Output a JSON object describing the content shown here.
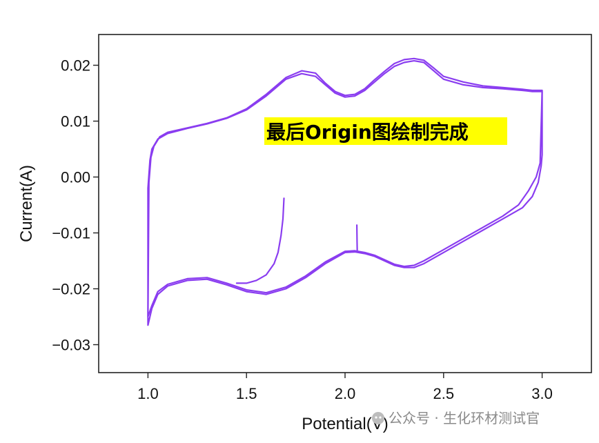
{
  "chart_data": {
    "type": "line",
    "title": "",
    "xlabel": "Potential(V)",
    "ylabel": "Current(A)",
    "xlim": [
      0.75,
      3.25
    ],
    "ylim": [
      -0.035,
      0.0255
    ],
    "xticks": [
      1.0,
      1.5,
      2.0,
      2.5,
      3.0
    ],
    "xtick_labels": [
      "1.0",
      "1.5",
      "2.0",
      "2.5",
      "3.0"
    ],
    "yticks": [
      0.02,
      0.01,
      0.0,
      -0.01,
      -0.02,
      -0.03
    ],
    "ytick_labels": [
      "0.02",
      "0.01",
      "0.00",
      "−0.01",
      "−0.02",
      "−0.03"
    ],
    "grid": false,
    "line_color": "#8a3df0",
    "annotation": {
      "text": "最后Origin图绘制完成",
      "background": "#ffff00"
    },
    "series": [
      {
        "x": [
          1.0,
          1.0,
          1.01,
          1.02,
          1.05,
          1.1,
          1.2,
          1.3,
          1.4,
          1.5,
          1.6,
          1.7,
          1.78,
          1.85,
          1.9,
          1.95,
          2.0,
          2.05,
          2.1,
          2.15,
          2.2,
          2.25,
          2.3,
          2.35,
          2.4,
          2.45,
          2.5,
          2.6,
          2.7,
          2.8,
          2.9,
          2.95,
          3.0,
          3.0,
          2.995,
          2.98,
          2.95,
          2.9,
          2.85,
          2.8,
          2.7,
          2.6,
          2.5,
          2.4,
          2.35,
          2.3,
          2.25,
          2.2,
          2.15,
          2.1,
          2.05,
          2.0,
          1.9,
          1.8,
          1.7,
          1.6,
          1.5,
          1.4,
          1.3,
          1.2,
          1.1,
          1.05,
          1.02,
          1.0
        ],
        "y": [
          -0.0265,
          -0.002,
          0.003,
          0.005,
          0.0068,
          0.0078,
          0.0087,
          0.0095,
          0.0105,
          0.012,
          0.0145,
          0.0175,
          0.0185,
          0.018,
          0.0165,
          0.015,
          0.0143,
          0.0145,
          0.0155,
          0.017,
          0.0185,
          0.0198,
          0.0205,
          0.0208,
          0.0205,
          0.019,
          0.0175,
          0.0165,
          0.016,
          0.0158,
          0.0155,
          0.0153,
          0.0153,
          0.004,
          0.002,
          -0.001,
          -0.0035,
          -0.0055,
          -0.0065,
          -0.0075,
          -0.0095,
          -0.0115,
          -0.0135,
          -0.0155,
          -0.0162,
          -0.0162,
          -0.0158,
          -0.015,
          -0.0142,
          -0.0137,
          -0.0134,
          -0.0135,
          -0.0155,
          -0.018,
          -0.02,
          -0.021,
          -0.0205,
          -0.0193,
          -0.0183,
          -0.0185,
          -0.0195,
          -0.021,
          -0.0235,
          -0.0265
        ]
      },
      {
        "x": [
          1.0,
          1.005,
          1.015,
          1.03,
          1.06,
          1.1,
          1.2,
          1.3,
          1.4,
          1.5,
          1.6,
          1.7,
          1.78,
          1.85,
          1.9,
          1.95,
          2.0,
          2.05,
          2.1,
          2.15,
          2.2,
          2.25,
          2.3,
          2.35,
          2.4,
          2.45,
          2.5,
          2.6,
          2.7,
          2.8,
          2.9,
          2.95,
          3.0,
          2.99,
          2.97,
          2.93,
          2.88,
          2.8,
          2.7,
          2.6,
          2.5,
          2.4,
          2.35,
          2.3,
          2.25,
          2.2,
          2.15,
          2.1,
          2.05,
          2.0,
          1.9,
          1.8,
          1.7,
          1.6,
          1.5,
          1.4,
          1.3,
          1.2,
          1.1,
          1.05,
          1.02,
          1.0
        ],
        "y": [
          -0.025,
          -0.001,
          0.0035,
          0.0055,
          0.0072,
          0.008,
          0.0088,
          0.0096,
          0.0106,
          0.0122,
          0.0148,
          0.0178,
          0.019,
          0.0186,
          0.0168,
          0.0153,
          0.0146,
          0.0148,
          0.0158,
          0.0174,
          0.0189,
          0.0203,
          0.021,
          0.0212,
          0.0209,
          0.0195,
          0.018,
          0.017,
          0.0163,
          0.016,
          0.0157,
          0.0155,
          0.0155,
          0.0025,
          0.0,
          -0.0025,
          -0.005,
          -0.007,
          -0.009,
          -0.011,
          -0.013,
          -0.015,
          -0.0158,
          -0.016,
          -0.0156,
          -0.0148,
          -0.014,
          -0.0135,
          -0.0132,
          -0.0133,
          -0.0152,
          -0.0177,
          -0.0197,
          -0.0207,
          -0.0202,
          -0.019,
          -0.018,
          -0.0182,
          -0.0192,
          -0.0205,
          -0.023,
          -0.025
        ]
      },
      {
        "x": [
          1.69,
          1.685,
          1.675,
          1.66,
          1.64,
          1.6,
          1.55,
          1.5,
          1.45
        ],
        "y": [
          -0.0038,
          -0.0075,
          -0.0105,
          -0.0135,
          -0.0155,
          -0.0175,
          -0.0185,
          -0.019,
          -0.019
        ]
      },
      {
        "x": [
          2.06,
          2.061,
          2.062
        ],
        "y": [
          -0.0086,
          -0.0115,
          -0.0134
        ]
      }
    ]
  },
  "watermark": {
    "text": "公众号 · 生化环材测试官",
    "icon": "wechat-icon"
  }
}
